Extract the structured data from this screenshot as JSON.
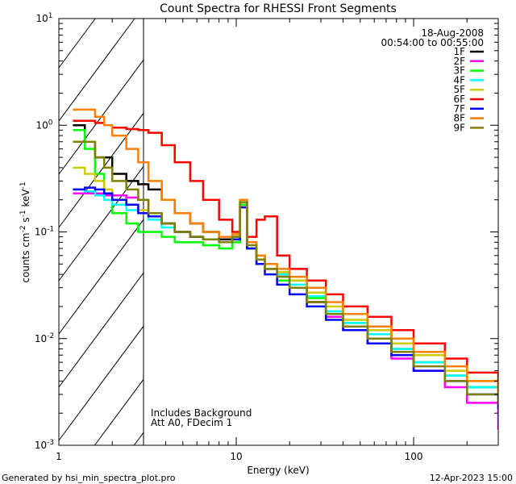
{
  "chart_data": {
    "type": "line",
    "title": "Count Spectra for RHESSI Front Segments",
    "xlabel": "Energy (keV)",
    "ylabel": "counts cm-2 s-1 keV-1",
    "ylabel_parts": {
      "base1": "counts cm",
      "exp1": "-2",
      "base2": " s",
      "exp2": "-1",
      "base3": " keV",
      "exp3": "-1"
    },
    "xscale": "log",
    "yscale": "log",
    "xlim": [
      1,
      300
    ],
    "ylim": [
      0.001,
      10
    ],
    "x_ticklabels": [
      {
        "v": 1,
        "label": "1"
      },
      {
        "v": 10,
        "label": "10"
      },
      {
        "v": 100,
        "label": "100"
      }
    ],
    "y_ticklabels": [
      {
        "v": 0.001,
        "exp": "-3"
      },
      {
        "v": 0.01,
        "exp": "-2"
      },
      {
        "v": 0.1,
        "exp": "-1"
      },
      {
        "v": 1,
        "exp": "0"
      },
      {
        "v": 10,
        "exp": "1"
      }
    ],
    "y_tick_base": "10",
    "hatched_region_keV": [
      1,
      3
    ],
    "annotations": {
      "date": "18-Aug-2008",
      "time_range": "00:54:00 to 00:55:00",
      "background_note": "Includes Background",
      "atten_note": "Att A0, FDecim 1",
      "generated_by": "Generated by hsi_min_spectra_plot.pro",
      "generated_date": "12-Apr-2023 15:00"
    },
    "legend_position": "top-right",
    "x": [
      1.2,
      1.4,
      1.6,
      1.8,
      2.0,
      2.4,
      2.8,
      3.2,
      3.8,
      4.5,
      5.5,
      6.5,
      8,
      9.5,
      10.5,
      11.5,
      13,
      14.5,
      17,
      20,
      25,
      32,
      40,
      55,
      75,
      100,
      150,
      200,
      300
    ],
    "series": [
      {
        "name": "1F",
        "color": "#000000",
        "values": [
          1.0,
          0.7,
          0.5,
          0.5,
          0.35,
          0.3,
          0.28,
          0.25,
          0.2,
          0.15,
          0.12,
          0.1,
          0.085,
          0.09,
          0.18,
          0.08,
          0.06,
          0.05,
          0.04,
          0.03,
          0.022,
          0.017,
          0.013,
          0.011,
          0.008,
          0.006,
          0.0045,
          0.0035,
          0.0028
        ]
      },
      {
        "name": "2F",
        "color": "#ff00ff",
        "values": [
          0.23,
          0.23,
          0.23,
          0.22,
          0.22,
          0.21,
          0.2,
          0.15,
          0.12,
          0.1,
          0.09,
          0.085,
          0.08,
          0.085,
          0.18,
          0.07,
          0.05,
          0.045,
          0.035,
          0.03,
          0.022,
          0.016,
          0.012,
          0.009,
          0.0065,
          0.005,
          0.0035,
          0.0025,
          0.0014
        ]
      },
      {
        "name": "3F",
        "color": "#00ff00",
        "values": [
          0.9,
          0.6,
          0.35,
          0.2,
          0.15,
          0.12,
          0.1,
          0.1,
          0.09,
          0.08,
          0.08,
          0.075,
          0.07,
          0.08,
          0.18,
          0.07,
          0.05,
          0.045,
          0.035,
          0.03,
          0.024,
          0.018,
          0.014,
          0.011,
          0.008,
          0.006,
          0.0045,
          0.0035,
          0.0028
        ]
      },
      {
        "name": "4F",
        "color": "#00ffff",
        "values": [
          0.25,
          0.24,
          0.22,
          0.2,
          0.18,
          0.16,
          0.15,
          0.13,
          0.11,
          0.1,
          0.09,
          0.085,
          0.08,
          0.09,
          0.2,
          0.08,
          0.06,
          0.05,
          0.04,
          0.032,
          0.025,
          0.018,
          0.014,
          0.011,
          0.008,
          0.006,
          0.0045,
          0.0035,
          0.0028
        ]
      },
      {
        "name": "5F",
        "color": "#cccc00",
        "values": [
          0.4,
          0.35,
          0.3,
          0.25,
          0.2,
          0.18,
          0.16,
          0.14,
          0.12,
          0.1,
          0.09,
          0.085,
          0.08,
          0.09,
          0.2,
          0.08,
          0.06,
          0.05,
          0.042,
          0.035,
          0.027,
          0.02,
          0.015,
          0.012,
          0.009,
          0.007,
          0.005,
          0.004,
          0.003
        ]
      },
      {
        "name": "6F",
        "color": "#ff0000",
        "values": [
          1.1,
          1.1,
          1.05,
          1.0,
          0.95,
          0.92,
          0.9,
          0.85,
          0.65,
          0.45,
          0.3,
          0.2,
          0.13,
          0.1,
          0.17,
          0.09,
          0.13,
          0.14,
          0.06,
          0.045,
          0.035,
          0.026,
          0.02,
          0.016,
          0.012,
          0.009,
          0.0065,
          0.0048,
          0.0032
        ]
      },
      {
        "name": "7F",
        "color": "#0000ff",
        "values": [
          0.25,
          0.26,
          0.25,
          0.23,
          0.2,
          0.18,
          0.15,
          0.14,
          0.12,
          0.1,
          0.09,
          0.085,
          0.08,
          0.085,
          0.17,
          0.07,
          0.05,
          0.04,
          0.032,
          0.026,
          0.02,
          0.015,
          0.012,
          0.009,
          0.007,
          0.005,
          0.004,
          0.003,
          0.0022
        ]
      },
      {
        "name": "8F",
        "color": "#ff8000",
        "values": [
          1.4,
          1.4,
          1.2,
          1.0,
          0.8,
          0.6,
          0.45,
          0.3,
          0.2,
          0.15,
          0.12,
          0.1,
          0.09,
          0.095,
          0.2,
          0.08,
          0.06,
          0.05,
          0.045,
          0.038,
          0.03,
          0.022,
          0.017,
          0.013,
          0.01,
          0.0075,
          0.0055,
          0.004,
          0.003
        ]
      },
      {
        "name": "9F",
        "color": "#808000",
        "values": [
          0.7,
          0.7,
          0.5,
          0.4,
          0.3,
          0.25,
          0.2,
          0.15,
          0.12,
          0.1,
          0.09,
          0.085,
          0.08,
          0.09,
          0.19,
          0.075,
          0.055,
          0.045,
          0.038,
          0.03,
          0.022,
          0.017,
          0.013,
          0.01,
          0.0075,
          0.0055,
          0.004,
          0.003,
          0.0024
        ]
      }
    ]
  }
}
